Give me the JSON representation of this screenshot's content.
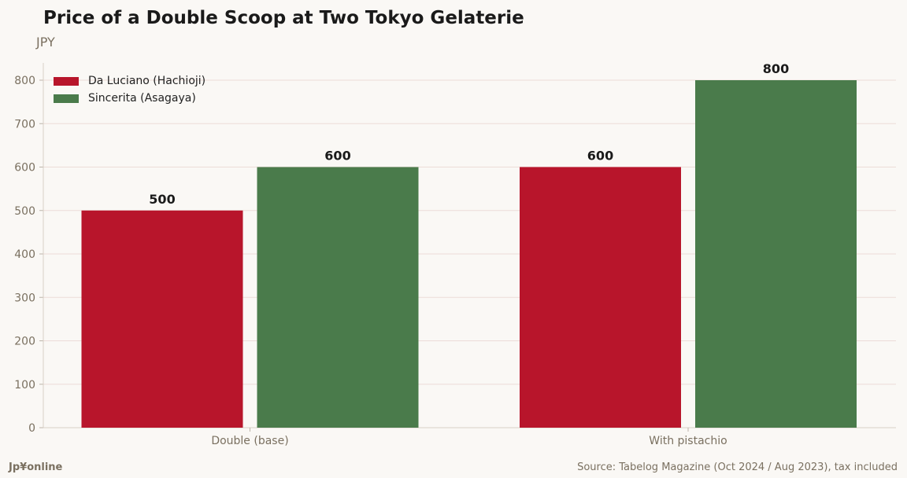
{
  "chart_data": {
    "type": "bar",
    "title": "Price of a Double Scoop at Two Tokyo Gelaterie",
    "ylabel": "JPY",
    "xlabel": "",
    "categories": [
      "Double (base)",
      "With pistachio"
    ],
    "series": [
      {
        "name": "Da Luciano (Hachioji)",
        "values": [
          500,
          600
        ],
        "color": "#b8152b"
      },
      {
        "name": "Sincerita (Asagaya)",
        "values": [
          600,
          800
        ],
        "color": "#4a7b4b"
      }
    ],
    "ylim": [
      0,
      840
    ],
    "yticks": [
      0,
      100,
      200,
      300,
      400,
      500,
      600,
      700,
      800
    ],
    "grid": true,
    "legend_position": "top-left",
    "data_labels": true
  },
  "footer": {
    "brand": "Jp¥online",
    "source": "Source: Tabelog Magazine (Oct 2024 / Aug 2023), tax included"
  }
}
